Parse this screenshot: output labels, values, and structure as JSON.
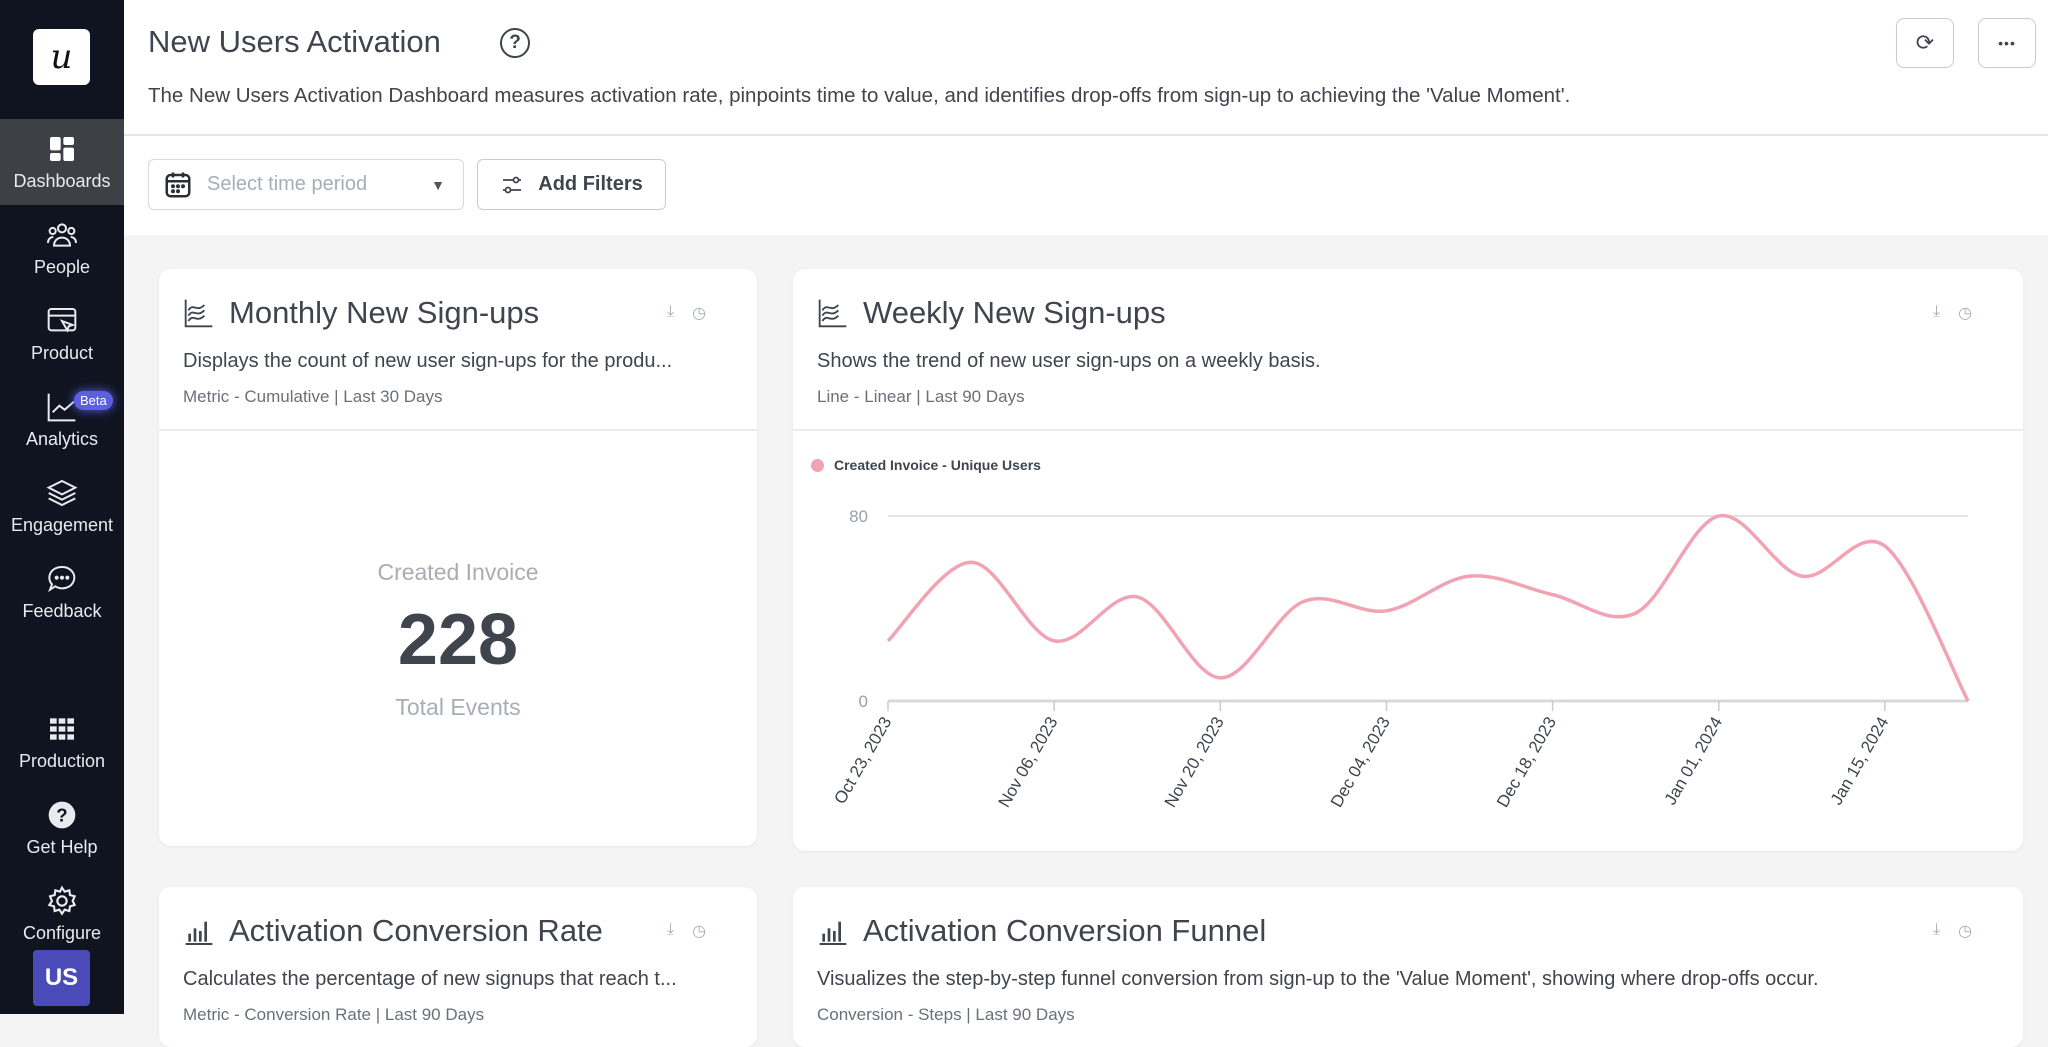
{
  "sidebar": {
    "logo": "u",
    "items": [
      {
        "label": "Dashboards",
        "icon": "dashboard-icon",
        "active": true
      },
      {
        "label": "People",
        "icon": "people-icon"
      },
      {
        "label": "Product",
        "icon": "product-icon"
      },
      {
        "label": "Analytics",
        "icon": "analytics-icon",
        "badge": "Beta"
      },
      {
        "label": "Engagement",
        "icon": "layers-icon"
      },
      {
        "label": "Feedback",
        "icon": "chat-icon"
      },
      {
        "label": "Production",
        "icon": "grid-icon"
      },
      {
        "label": "Get Help",
        "icon": "help-icon"
      },
      {
        "label": "Configure",
        "icon": "gear-icon"
      }
    ],
    "avatar": "US"
  },
  "header": {
    "title": "New Users Activation",
    "help": "?",
    "description": "The New Users Activation Dashboard measures activation rate, pinpoints time to value, and identifies drop-offs from sign-up to achieving the 'Value Moment'.",
    "refresh": "⟳",
    "more": "•••"
  },
  "filters": {
    "time_placeholder": "Select time period",
    "add_filters": "Add Filters"
  },
  "cards": [
    {
      "title": "Monthly New Sign-ups",
      "description": "Displays the count of new user sign-ups for the produ...",
      "meta": "Metric - Cumulative | Last 30 Days",
      "metric_label": "Created Invoice",
      "metric_value": "228",
      "metric_sub": "Total Events"
    },
    {
      "title": "Weekly New Sign-ups",
      "description": "Shows the trend of new user sign-ups on a weekly basis.",
      "meta": "Line - Linear | Last 90 Days"
    },
    {
      "title": "Activation Conversion Rate",
      "description": "Calculates the percentage of new signups that reach t...",
      "meta": "Metric - Conversion Rate | Last 90 Days"
    },
    {
      "title": "Activation Conversion Funnel",
      "description": "Visualizes the step-by-step funnel conversion from sign-up to the 'Value Moment', showing where drop-offs occur.",
      "meta": "Conversion - Steps | Last 90 Days"
    }
  ],
  "chart_data": {
    "type": "line",
    "legend": "top-left",
    "grid": true,
    "series": [
      {
        "name": "Created Invoice - Unique Users",
        "color": "#f2a3b3",
        "x": [
          "2023-10-23",
          "2023-10-30",
          "2023-11-06",
          "2023-11-13",
          "2023-11-20",
          "2023-11-27",
          "2023-12-04",
          "2023-12-11",
          "2023-12-18",
          "2023-12-25",
          "2024-01-01",
          "2024-01-08",
          "2024-01-15",
          "2024-01-22"
        ],
        "values": [
          26,
          60,
          26,
          45,
          10,
          43,
          39,
          54,
          46,
          38,
          80,
          54,
          67,
          0
        ]
      }
    ],
    "xticks": [
      "Oct 23, 2023",
      "Nov 06, 2023",
      "Nov 20, 2023",
      "Dec 04, 2023",
      "Dec 18, 2023",
      "Jan 01, 2024",
      "Jan 15, 2024"
    ],
    "yticks": [
      "0",
      "80"
    ],
    "ylim": [
      0,
      80
    ]
  }
}
